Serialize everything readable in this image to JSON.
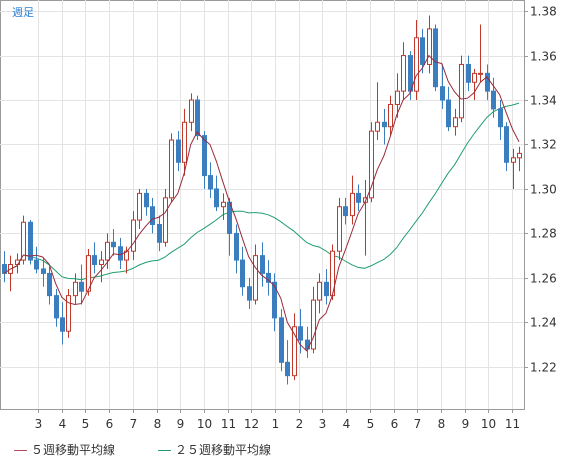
{
  "chart_data": {
    "type": "candlestick",
    "period_label": "週足",
    "y_ticks": [
      "1.38",
      "1.36",
      "1.34",
      "1.32",
      "1.30",
      "1.28",
      "1.26",
      "1.24",
      "1.22"
    ],
    "ylim": [
      1.201,
      1.385
    ],
    "x_tick_labels": [
      "3",
      "4",
      "5",
      "6",
      "7",
      "8",
      "9",
      "10",
      "11",
      "12",
      "1",
      "2",
      "3",
      "4",
      "5",
      "6",
      "7",
      "8",
      "9",
      "10",
      "11"
    ],
    "grid": true,
    "colors": {
      "up": "#c0392b",
      "down": "#3a7ebf",
      "ma5": "#9a2a3a",
      "ma25": "#1f9e6e"
    },
    "legend": [
      {
        "label": "５週移動平均線",
        "color": "#b5485a"
      },
      {
        "label": "２５週移動平均線",
        "color": "#1f9e6e"
      }
    ],
    "candles": [
      [
        1.266,
        1.272,
        1.258,
        1.262
      ],
      [
        1.262,
        1.27,
        1.254,
        1.266
      ],
      [
        1.266,
        1.271,
        1.262,
        1.268
      ],
      [
        1.268,
        1.288,
        1.266,
        1.285
      ],
      [
        1.285,
        1.286,
        1.266,
        1.268
      ],
      [
        1.268,
        1.274,
        1.262,
        1.264
      ],
      [
        1.264,
        1.269,
        1.256,
        1.262
      ],
      [
        1.262,
        1.265,
        1.248,
        1.252
      ],
      [
        1.252,
        1.255,
        1.238,
        1.242
      ],
      [
        1.242,
        1.249,
        1.23,
        1.236
      ],
      [
        1.236,
        1.255,
        1.233,
        1.252
      ],
      [
        1.252,
        1.262,
        1.248,
        1.258
      ],
      [
        1.258,
        1.266,
        1.248,
        1.254
      ],
      [
        1.254,
        1.273,
        1.252,
        1.27
      ],
      [
        1.27,
        1.276,
        1.262,
        1.266
      ],
      [
        1.266,
        1.272,
        1.258,
        1.268
      ],
      [
        1.268,
        1.28,
        1.264,
        1.276
      ],
      [
        1.276,
        1.282,
        1.27,
        1.274
      ],
      [
        1.274,
        1.278,
        1.264,
        1.268
      ],
      [
        1.268,
        1.274,
        1.262,
        1.272
      ],
      [
        1.272,
        1.29,
        1.268,
        1.286
      ],
      [
        1.286,
        1.3,
        1.282,
        1.298
      ],
      [
        1.298,
        1.3,
        1.288,
        1.292
      ],
      [
        1.292,
        1.296,
        1.28,
        1.284
      ],
      [
        1.284,
        1.288,
        1.272,
        1.276
      ],
      [
        1.276,
        1.3,
        1.274,
        1.296
      ],
      [
        1.296,
        1.325,
        1.294,
        1.322
      ],
      [
        1.322,
        1.326,
        1.308,
        1.312
      ],
      [
        1.312,
        1.336,
        1.306,
        1.33
      ],
      [
        1.33,
        1.343,
        1.326,
        1.34
      ],
      [
        1.34,
        1.342,
        1.322,
        1.324
      ],
      [
        1.324,
        1.326,
        1.3,
        1.306
      ],
      [
        1.306,
        1.312,
        1.296,
        1.3
      ],
      [
        1.3,
        1.306,
        1.29,
        1.292
      ],
      [
        1.292,
        1.298,
        1.286,
        1.294
      ],
      [
        1.294,
        1.296,
        1.27,
        1.28
      ],
      [
        1.28,
        1.284,
        1.262,
        1.268
      ],
      [
        1.268,
        1.274,
        1.252,
        1.256
      ],
      [
        1.256,
        1.26,
        1.246,
        1.25
      ],
      [
        1.25,
        1.275,
        1.248,
        1.27
      ],
      [
        1.27,
        1.276,
        1.256,
        1.262
      ],
      [
        1.262,
        1.268,
        1.252,
        1.258
      ],
      [
        1.258,
        1.262,
        1.236,
        1.242
      ],
      [
        1.242,
        1.246,
        1.218,
        1.222
      ],
      [
        1.222,
        1.232,
        1.212,
        1.216
      ],
      [
        1.216,
        1.244,
        1.214,
        1.238
      ],
      [
        1.238,
        1.246,
        1.226,
        1.232
      ],
      [
        1.232,
        1.238,
        1.224,
        1.228
      ],
      [
        1.228,
        1.256,
        1.226,
        1.25
      ],
      [
        1.25,
        1.262,
        1.244,
        1.258
      ],
      [
        1.258,
        1.264,
        1.248,
        1.252
      ],
      [
        1.252,
        1.275,
        1.25,
        1.272
      ],
      [
        1.272,
        1.296,
        1.268,
        1.292
      ],
      [
        1.292,
        1.296,
        1.284,
        1.288
      ],
      [
        1.288,
        1.306,
        1.284,
        1.298
      ],
      [
        1.298,
        1.302,
        1.29,
        1.294
      ],
      [
        1.294,
        1.304,
        1.27,
        1.296
      ],
      [
        1.296,
        1.33,
        1.294,
        1.326
      ],
      [
        1.326,
        1.348,
        1.322,
        1.33
      ],
      [
        1.33,
        1.336,
        1.32,
        1.328
      ],
      [
        1.328,
        1.342,
        1.324,
        1.338
      ],
      [
        1.338,
        1.352,
        1.332,
        1.344
      ],
      [
        1.344,
        1.366,
        1.34,
        1.36
      ],
      [
        1.36,
        1.362,
        1.34,
        1.344
      ],
      [
        1.344,
        1.376,
        1.34,
        1.368
      ],
      [
        1.368,
        1.372,
        1.352,
        1.356
      ],
      [
        1.356,
        1.378,
        1.352,
        1.372
      ],
      [
        1.372,
        1.374,
        1.344,
        1.346
      ],
      [
        1.346,
        1.356,
        1.336,
        1.34
      ],
      [
        1.34,
        1.346,
        1.326,
        1.328
      ],
      [
        1.328,
        1.336,
        1.324,
        1.332
      ],
      [
        1.332,
        1.36,
        1.33,
        1.356
      ],
      [
        1.356,
        1.36,
        1.344,
        1.348
      ],
      [
        1.348,
        1.354,
        1.34,
        1.352
      ],
      [
        1.352,
        1.374,
        1.348,
        1.352
      ],
      [
        1.352,
        1.356,
        1.34,
        1.344
      ],
      [
        1.344,
        1.35,
        1.332,
        1.336
      ],
      [
        1.336,
        1.34,
        1.322,
        1.328
      ],
      [
        1.328,
        1.33,
        1.308,
        1.312
      ],
      [
        1.312,
        1.318,
        1.3,
        1.314
      ],
      [
        1.314,
        1.319,
        1.308,
        1.316
      ]
    ]
  }
}
